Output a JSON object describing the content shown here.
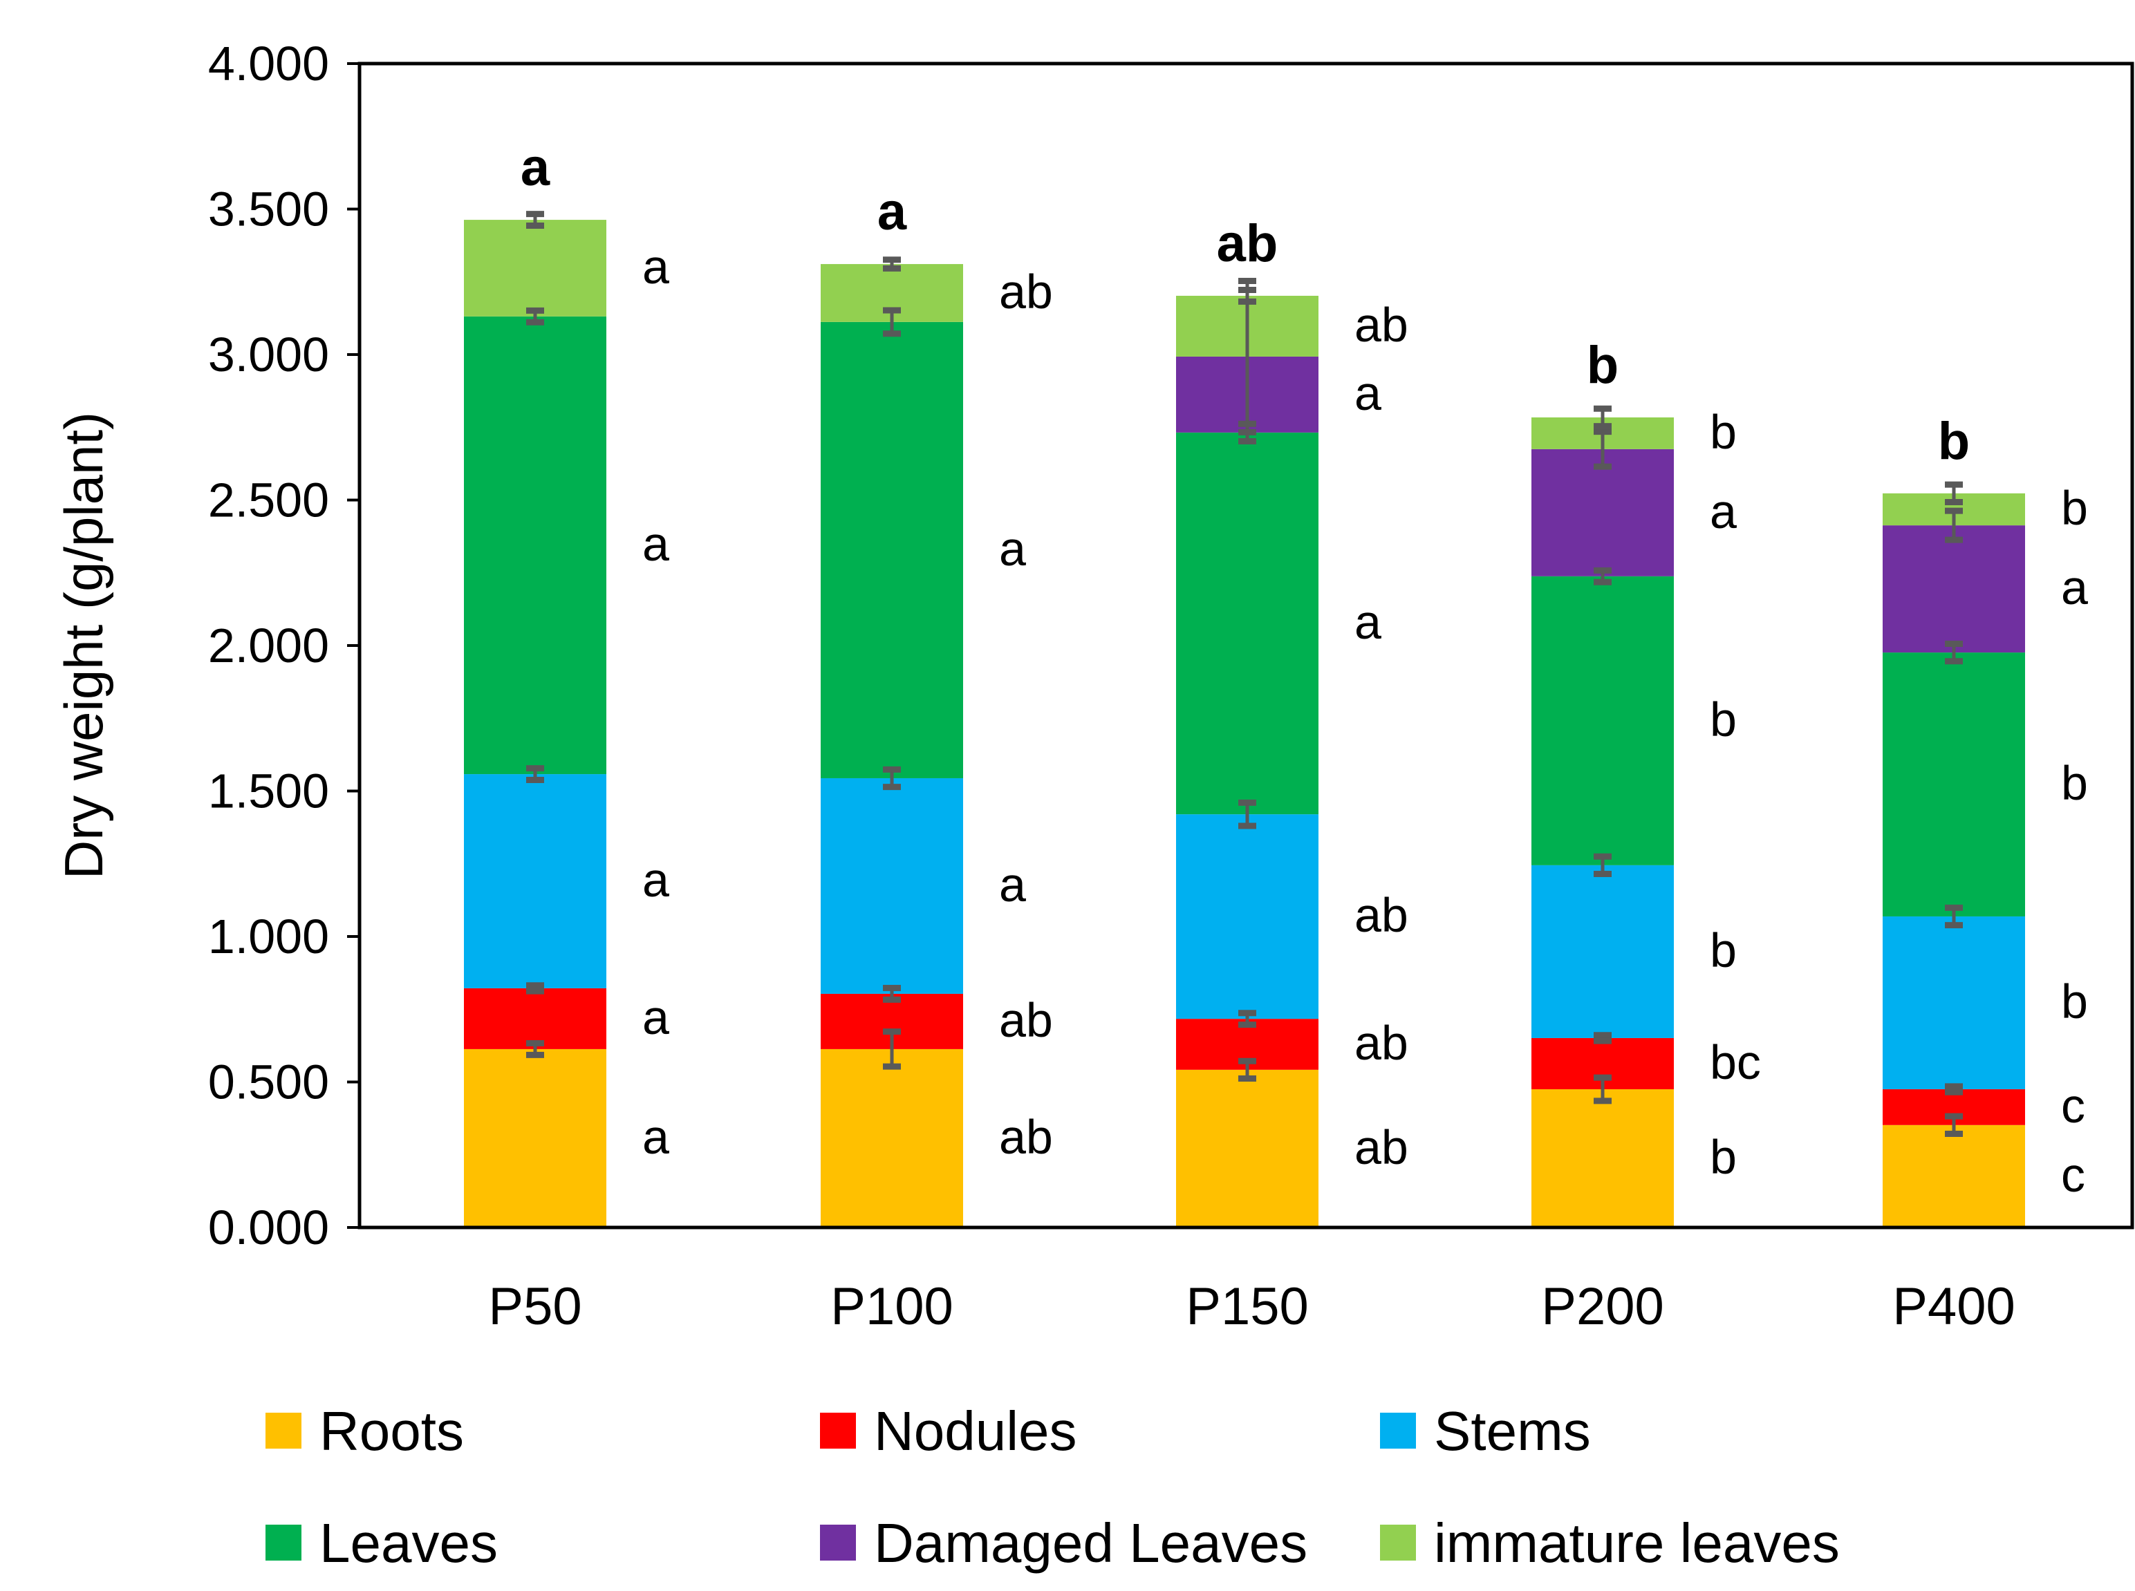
{
  "chart_data": {
    "type": "bar",
    "stacked": true,
    "title": "",
    "xlabel": "",
    "ylabel": "Dry weight (g/plant)",
    "ylim": [
      0,
      4
    ],
    "yticks": [
      "0.000",
      "0.500",
      "1.000",
      "1.500",
      "2.000",
      "2.500",
      "3.000",
      "3.500",
      "4.000"
    ],
    "grid": false,
    "legend_position": "bottom",
    "categories": [
      "P50",
      "P100",
      "P150",
      "P200",
      "P400"
    ],
    "total_letters": [
      "a",
      "a",
      "ab",
      "b",
      "b"
    ],
    "series": [
      {
        "name": "Roots",
        "color": "#FFC000",
        "values": [
          0.613,
          0.613,
          0.542,
          0.475,
          0.352
        ],
        "errors": [
          0.02,
          0.06,
          0.03,
          0.04,
          0.03
        ],
        "letters": [
          "a",
          "ab",
          "ab",
          "b",
          "c"
        ]
      },
      {
        "name": "Nodules",
        "color": "#FF0000",
        "values": [
          0.209,
          0.19,
          0.175,
          0.176,
          0.123
        ],
        "errors": [
          0.01,
          0.02,
          0.02,
          0.01,
          0.01
        ],
        "letters": [
          "a",
          "ab",
          "ab",
          "bc",
          "c"
        ]
      },
      {
        "name": "Stems",
        "color": "#00B0F0",
        "values": [
          0.736,
          0.741,
          0.703,
          0.594,
          0.594
        ],
        "errors": [
          0.02,
          0.03,
          0.04,
          0.03,
          0.03
        ],
        "letters": [
          "a",
          "a",
          "ab",
          "b",
          "b"
        ]
      },
      {
        "name": "Leaves",
        "color": "#00B050",
        "values": [
          1.573,
          1.568,
          1.312,
          0.993,
          0.907
        ],
        "errors": [
          0.02,
          0.04,
          0.03,
          0.02,
          0.03
        ],
        "letters": [
          "a",
          "a",
          "a",
          "b",
          "b"
        ]
      },
      {
        "name": "Damaged Leaves",
        "color": "#7030A0",
        "values": [
          0,
          0,
          0.261,
          0.437,
          0.437
        ],
        "errors": [
          null,
          null,
          0.26,
          0.06,
          0.05
        ],
        "letters": [
          null,
          null,
          "a",
          "a",
          "a"
        ]
      },
      {
        "name": "immature leaves",
        "color": "#92D050",
        "values": [
          0.332,
          0.199,
          0.209,
          0.109,
          0.11
        ],
        "errors": [
          0.02,
          0.015,
          0.02,
          0.03,
          0.03
        ],
        "letters": [
          "a",
          "ab",
          "ab",
          "b",
          "b"
        ]
      }
    ]
  }
}
